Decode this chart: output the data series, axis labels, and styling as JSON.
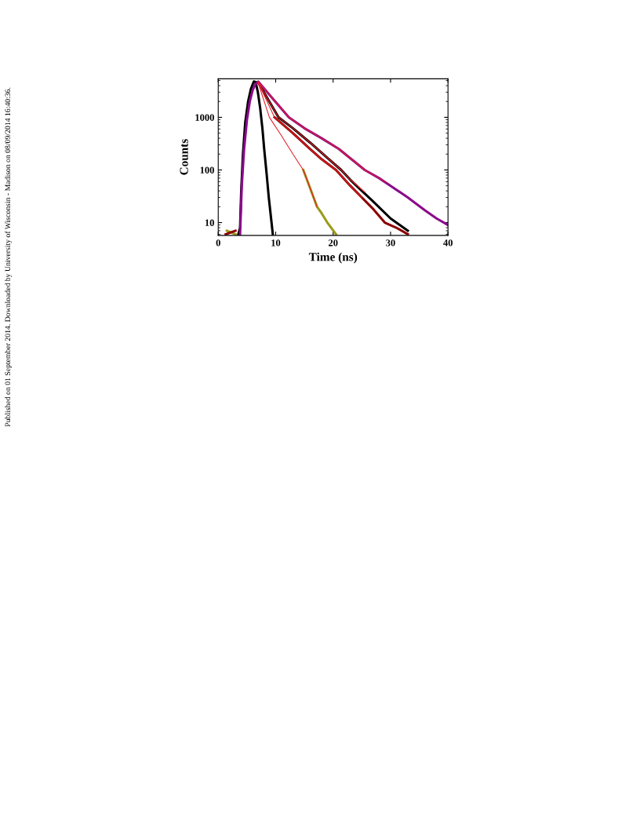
{
  "chart_data": {
    "type": "line",
    "xlabel": "Time (ns)",
    "ylabel": "Counts",
    "log": "y",
    "xlim": [
      0,
      40
    ],
    "ylim": [
      5.7,
      5400
    ],
    "xticks": [
      0,
      10,
      20,
      30,
      40
    ],
    "yticks": [
      10,
      100,
      1000
    ],
    "grid": false,
    "marker": "none",
    "line_style": "solid",
    "annotations": [
      "Published on 01 September 2014. Downloaded by University of Wisconsin - Madison on 08/09/2014 16:40:36."
    ],
    "series": [
      {
        "color": "#000000",
        "x": [
          3.5,
          3.8,
          4.0,
          4.3,
          4.7,
          5.2,
          5.7,
          6.2,
          6.5,
          6.9,
          7.3,
          7.7,
          8.0,
          8.4,
          8.8,
          9.2,
          9.5
        ],
        "values": [
          6,
          8,
          40,
          200,
          800,
          2000,
          3500,
          4800,
          4700,
          3000,
          1500,
          600,
          250,
          90,
          30,
          12,
          6
        ]
      },
      {
        "color": "#9a9a1a",
        "x": [
          1.5,
          3.0,
          3.8,
          4.1,
          4.5,
          5.0,
          5.5,
          6.0,
          6.5,
          6.9,
          8.9,
          11.0,
          13.0,
          14.8,
          16.0,
          17.2,
          18.0,
          19.0,
          20.5
        ],
        "values": [
          7,
          6,
          null,
          null,
          null,
          null,
          null,
          null,
          null,
          null,
          null,
          null,
          null,
          100,
          45,
          20,
          15,
          10,
          6
        ]
      },
      {
        "color": "#8b0000",
        "x": [
          1.3,
          3.0,
          3.8,
          4.1,
          4.5,
          5.0,
          5.5,
          6.0,
          6.5,
          6.9,
          9.8,
          13.0,
          16.0,
          18.0,
          20.5,
          23.0,
          25.0,
          27.0,
          29.0,
          31.0,
          33.0
        ],
        "values": [
          6,
          7,
          null,
          null,
          null,
          null,
          null,
          null,
          null,
          null,
          1000,
          500,
          250,
          160,
          100,
          50,
          30,
          18,
          10,
          8,
          6
        ]
      },
      {
        "color": "#000000",
        "x": [
          6.9,
          10.5,
          13.0,
          16.0,
          19.0,
          21.4,
          23.0,
          25.0,
          27.0,
          30.0,
          33.0
        ],
        "values": [
          4700,
          1000,
          620,
          330,
          170,
          100,
          65,
          40,
          25,
          12,
          7
        ]
      },
      {
        "color": "#8b0a8b",
        "x": [
          3.8,
          4.1,
          4.5,
          5.0,
          5.5,
          6.0,
          6.5,
          7.0,
          9.0,
          12.3,
          15.0,
          18.0,
          21.0,
          25.5,
          28.0,
          30.0,
          33.0,
          36.0,
          38.0,
          40.0
        ],
        "values": [
          6,
          50,
          250,
          900,
          2000,
          3300,
          4300,
          4700,
          2600,
          1000,
          620,
          400,
          250,
          100,
          70,
          50,
          30,
          17,
          12,
          9
        ]
      },
      {
        "color": "#e8202a",
        "x": [
          6.9,
          8.9,
          11.0,
          13.0,
          14.8,
          16.0,
          17.2
        ],
        "values": [
          4700,
          1000,
          450,
          200,
          100,
          45,
          20
        ]
      },
      {
        "color": "#e8202a",
        "x": [
          6.9,
          9.8,
          13.0,
          16.0,
          18.0,
          20.5,
          23.0,
          25.0
        ],
        "values": [
          4700,
          1000,
          500,
          250,
          160,
          100,
          50,
          30
        ]
      },
      {
        "color": "#e8202a",
        "x": [
          6.9,
          10.5,
          13.0,
          16.0,
          19.0,
          21.4,
          23.0,
          25.5
        ],
        "values": [
          4700,
          1000,
          620,
          330,
          170,
          100,
          65,
          38
        ]
      },
      {
        "color": "#e8202a",
        "x": [
          7.0,
          9.0,
          12.3,
          15.0,
          18.0,
          21.0,
          25.5,
          28.0,
          29.3
        ],
        "values": [
          4700,
          2600,
          1000,
          620,
          400,
          250,
          100,
          70,
          58
        ]
      }
    ]
  }
}
